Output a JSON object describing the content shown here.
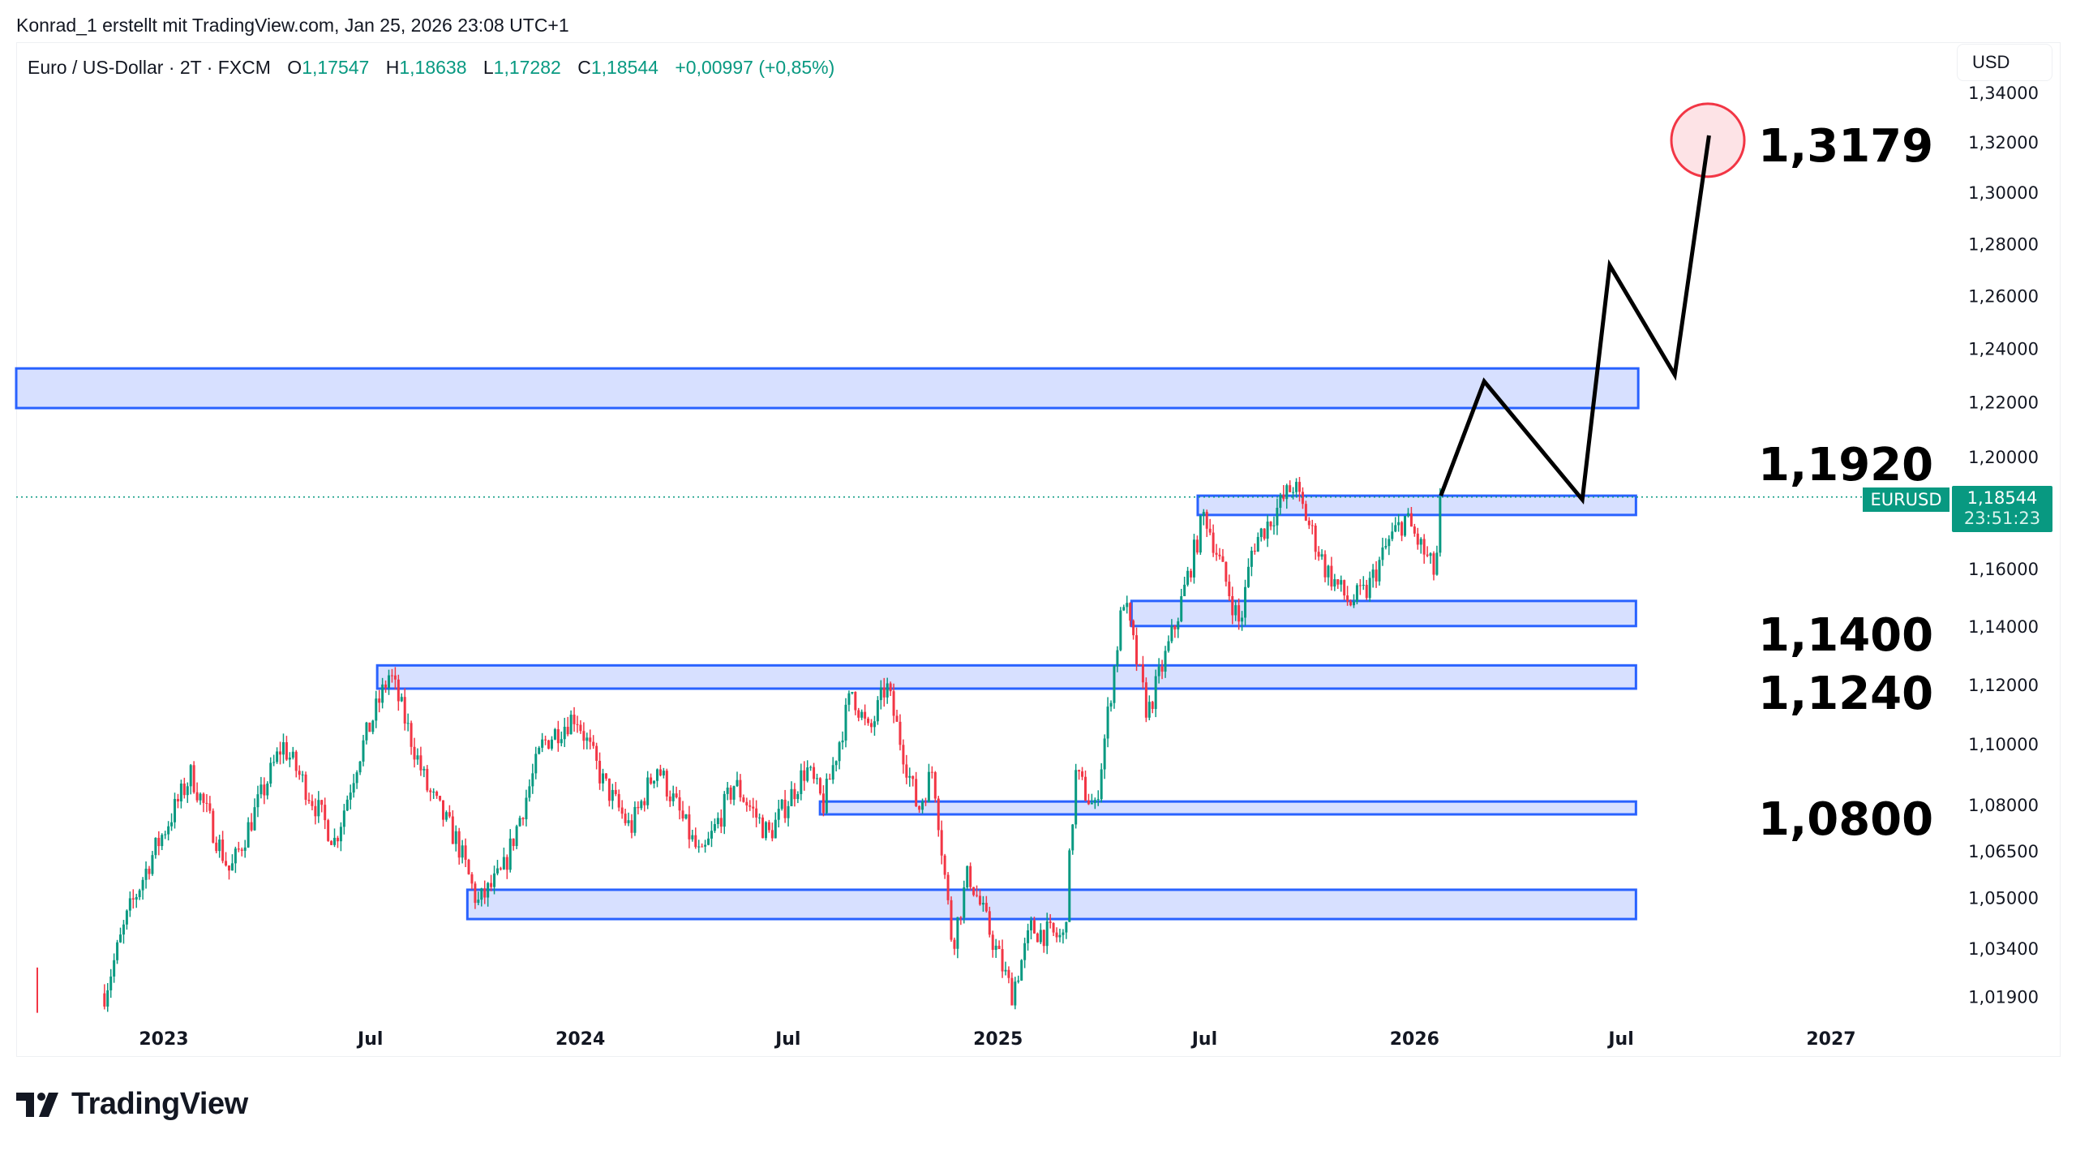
{
  "credit": "Konrad_1 erstellt mit TradingView.com, Jan 25, 2026 23:08 UTC+1",
  "legend": {
    "symbol": "Euro / US-Dollar · 2T · FXCM",
    "o_label": "O",
    "o": "1,17547",
    "h_label": "H",
    "h": "1,18638",
    "l_label": "L",
    "l": "1,17282",
    "c_label": "C",
    "c": "1,18544",
    "change": "+0,00997 (+0,85%)"
  },
  "currency_button": "USD",
  "price_tag": {
    "symbol": "EURUSD",
    "price": "1,18544",
    "countdown": "23:51:23"
  },
  "brand": "TradingView",
  "colors": {
    "up": "#089981",
    "down": "#f23645",
    "zone_fill": "#d3ddff",
    "zone_stroke": "#2962ff",
    "projection": "#000000",
    "target_circle": "#f23645"
  },
  "annotations": [
    "1,3179",
    "1,1920",
    "1,1400",
    "1,1240",
    "1,0800"
  ],
  "chart_data": {
    "type": "candlestick",
    "symbol": "EURUSD",
    "timeframe": "2T",
    "scale": "log",
    "ylim": [
      1.005,
      1.345
    ],
    "grid": false,
    "last_price": 1.18544,
    "y_ticks": [
      {
        "label": "1,34000",
        "value": 1.34
      },
      {
        "label": "1,32000",
        "value": 1.32
      },
      {
        "label": "1,30000",
        "value": 1.3
      },
      {
        "label": "1,28000",
        "value": 1.28
      },
      {
        "label": "1,26000",
        "value": 1.26
      },
      {
        "label": "1,24000",
        "value": 1.24
      },
      {
        "label": "1,22000",
        "value": 1.22
      },
      {
        "label": "1,20000",
        "value": 1.2
      },
      {
        "label": "1,16000",
        "value": 1.16
      },
      {
        "label": "1,14000",
        "value": 1.14
      },
      {
        "label": "1,12000",
        "value": 1.12
      },
      {
        "label": "1,10000",
        "value": 1.1
      },
      {
        "label": "1,08000",
        "value": 1.08
      },
      {
        "label": "1,06500",
        "value": 1.065
      },
      {
        "label": "1,05000",
        "value": 1.05
      },
      {
        "label": "1,03400",
        "value": 1.034
      },
      {
        "label": "1,01900",
        "value": 1.019
      }
    ],
    "x_ticks": [
      {
        "label": "2023",
        "date": "2023-01-01"
      },
      {
        "label": "Jul",
        "date": "2023-07-01"
      },
      {
        "label": "2024",
        "date": "2024-01-01"
      },
      {
        "label": "Jul",
        "date": "2024-07-01"
      },
      {
        "label": "2025",
        "date": "2025-01-01"
      },
      {
        "label": "Jul",
        "date": "2025-07-01"
      },
      {
        "label": "2026",
        "date": "2026-01-01"
      },
      {
        "label": "Jul",
        "date": "2026-07-01"
      },
      {
        "label": "2027",
        "date": "2027-01-01"
      }
    ],
    "price_path": [
      [
        "2022-11-10",
        1.02
      ],
      [
        "2022-12-01",
        1.045
      ],
      [
        "2022-12-20",
        1.062
      ],
      [
        "2023-01-25",
        1.09
      ],
      [
        "2023-02-28",
        1.058
      ],
      [
        "2023-04-15",
        1.1
      ],
      [
        "2023-05-31",
        1.068
      ],
      [
        "2023-06-20",
        1.095
      ],
      [
        "2023-07-18",
        1.124
      ],
      [
        "2023-08-20",
        1.085
      ],
      [
        "2023-09-15",
        1.068
      ],
      [
        "2023-10-03",
        1.048
      ],
      [
        "2023-10-25",
        1.058
      ],
      [
        "2023-11-29",
        1.1
      ],
      [
        "2023-12-28",
        1.11
      ],
      [
        "2024-01-20",
        1.088
      ],
      [
        "2024-02-14",
        1.072
      ],
      [
        "2024-03-08",
        1.093
      ],
      [
        "2024-04-16",
        1.062
      ],
      [
        "2024-05-15",
        1.087
      ],
      [
        "2024-06-14",
        1.07
      ],
      [
        "2024-07-17",
        1.092
      ],
      [
        "2024-08-01",
        1.08
      ],
      [
        "2024-08-26",
        1.118
      ],
      [
        "2024-09-10",
        1.103
      ],
      [
        "2024-09-25",
        1.12
      ],
      [
        "2024-10-23",
        1.078
      ],
      [
        "2024-11-05",
        1.092
      ],
      [
        "2024-11-22",
        1.035
      ],
      [
        "2024-12-06",
        1.058
      ],
      [
        "2025-01-13",
        1.02
      ],
      [
        "2025-01-30",
        1.04
      ],
      [
        "2025-02-28",
        1.037
      ],
      [
        "2025-03-10",
        1.09
      ],
      [
        "2025-03-27",
        1.078
      ],
      [
        "2025-04-21",
        1.15
      ],
      [
        "2025-05-12",
        1.11
      ],
      [
        "2025-06-05",
        1.14
      ],
      [
        "2025-07-01",
        1.18
      ],
      [
        "2025-07-16",
        1.16
      ],
      [
        "2025-08-01",
        1.14
      ],
      [
        "2025-08-12",
        1.168
      ],
      [
        "2025-09-17",
        1.19
      ],
      [
        "2025-10-01",
        1.175
      ],
      [
        "2025-10-15",
        1.16
      ],
      [
        "2025-11-05",
        1.148
      ],
      [
        "2025-11-20",
        1.152
      ],
      [
        "2025-12-10",
        1.17
      ],
      [
        "2025-12-24",
        1.178
      ],
      [
        "2026-01-06",
        1.168
      ],
      [
        "2026-01-19",
        1.158
      ],
      [
        "2026-01-25",
        1.18544
      ]
    ],
    "zones": [
      {
        "from": "2022-07-10",
        "to": "2026-07-16",
        "top": 1.2325,
        "bottom": 1.2178
      },
      {
        "from": "2025-06-25",
        "to": "2026-07-14",
        "top": 1.1859,
        "bottom": 1.179
      },
      {
        "from": "2025-04-28",
        "to": "2026-07-14",
        "top": 1.1487,
        "bottom": 1.14
      },
      {
        "from": "2023-07-07",
        "to": "2026-07-14",
        "top": 1.1265,
        "bottom": 1.1186
      },
      {
        "from": "2024-07-29",
        "to": "2026-07-14",
        "top": 1.081,
        "bottom": 1.0768
      },
      {
        "from": "2023-09-24",
        "to": "2026-07-14",
        "top": 1.0525,
        "bottom": 1.0432
      }
    ],
    "projection": [
      [
        "2026-01-24",
        1.1859
      ],
      [
        "2026-03-03",
        1.2277
      ],
      [
        "2026-05-28",
        1.1845
      ],
      [
        "2026-06-21",
        1.2716
      ],
      [
        "2026-08-17",
        1.2301
      ],
      [
        "2026-09-16",
        1.3226
      ]
    ],
    "target": {
      "date": "2026-09-15",
      "price": 1.3207
    }
  }
}
